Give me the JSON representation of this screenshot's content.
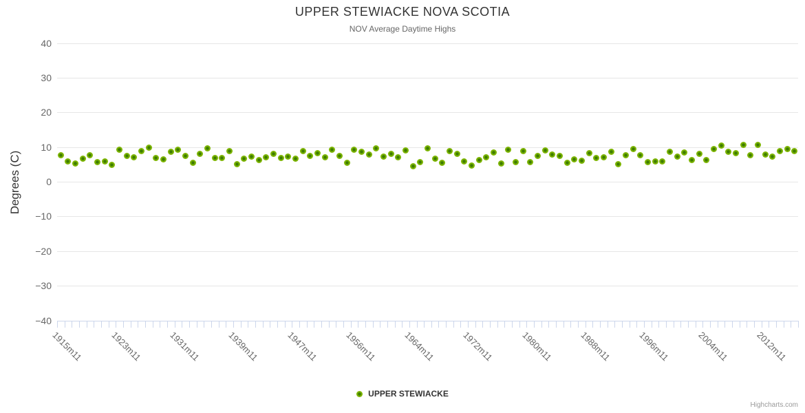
{
  "chart_data": {
    "type": "scatter",
    "title": "UPPER STEWIACKE NOVA SCOTIA",
    "subtitle": "NOV Average Daytime Highs",
    "ylabel": "Degrees (C)",
    "ylim": [
      -40,
      40
    ],
    "ytick_step": 10,
    "ytick_labels": [
      "40",
      "30",
      "20",
      "10",
      "0",
      "−10",
      "−20",
      "−30",
      "−40"
    ],
    "xtick_labels_shown": [
      "1915m11",
      "1923m11",
      "1931m11",
      "1939m11",
      "1947m11",
      "1956m11",
      "1964m11",
      "1972m11",
      "1980m11",
      "1988m11",
      "1996m11",
      "2004m11",
      "2012m11"
    ],
    "xtick_label_every": 8,
    "grid": true,
    "legend_position": "bottom-center",
    "credits": "Highcharts.com",
    "series": [
      {
        "name": "UPPER STEWIACKE",
        "marker_color": "#7CB400",
        "marker_center_color": "#3E7D00"
      }
    ],
    "categories": [
      "1915m11",
      "1916m11",
      "1917m11",
      "1918m11",
      "1919m11",
      "1920m11",
      "1921m11",
      "1922m11",
      "1923m11",
      "1924m11",
      "1925m11",
      "1926m11",
      "1927m11",
      "1928m11",
      "1929m11",
      "1930m11",
      "1931m11",
      "1932m11",
      "1933m11",
      "1934m11",
      "1935m11",
      "1936m11",
      "1937m11",
      "1938m11",
      "1939m11",
      "1940m11",
      "1941m11",
      "1942m11",
      "1943m11",
      "1944m11",
      "1945m11",
      "1946m11",
      "1947m11",
      "1948m11",
      "1949m11",
      "1951m11",
      "1952m11",
      "1953m11",
      "1954m11",
      "1955m11",
      "1956m11",
      "1957m11",
      "1958m11",
      "1959m11",
      "1960m11",
      "1961m11",
      "1962m11",
      "1963m11",
      "1964m11",
      "1965m11",
      "1966m11",
      "1967m11",
      "1968m11",
      "1969m11",
      "1970m11",
      "1971m11",
      "1972m11",
      "1973m11",
      "1974m11",
      "1975m11",
      "1976m11",
      "1977m11",
      "1978m11",
      "1979m11",
      "1980m11",
      "1981m11",
      "1982m11",
      "1983m11",
      "1984m11",
      "1985m11",
      "1986m11",
      "1987m11",
      "1988m11",
      "1989m11",
      "1990m11",
      "1991m11",
      "1992m11",
      "1993m11",
      "1994m11",
      "1995m11",
      "1996m11",
      "1997m11",
      "1998m11",
      "1999m11",
      "2000m11",
      "2001m11",
      "2002m11",
      "2003m11",
      "2004m11",
      "2005m11",
      "2006m11",
      "2007m11",
      "2008m11",
      "2009m11",
      "2010m11",
      "2011m11",
      "2012m11",
      "2013m11",
      "2014m11",
      "2015m11",
      "2016m11"
    ],
    "values": [
      7.7,
      5.9,
      5.3,
      6.6,
      7.6,
      5.7,
      5.9,
      4.9,
      9.2,
      7.5,
      7.1,
      8.9,
      9.9,
      6.9,
      6.5,
      8.7,
      9.2,
      7.4,
      5.5,
      8.1,
      9.7,
      6.9,
      6.9,
      8.9,
      5.1,
      6.7,
      7.3,
      6.3,
      7.1,
      8.0,
      6.9,
      7.2,
      6.6,
      8.8,
      7.4,
      8.3,
      7.1,
      9.2,
      7.4,
      5.4,
      9.2,
      8.7,
      7.8,
      9.6,
      7.2,
      8.1,
      7.0,
      9.0,
      4.5,
      5.7,
      9.7,
      6.7,
      5.5,
      8.9,
      8.0,
      5.9,
      4.7,
      6.2,
      7.1,
      8.5,
      5.3,
      9.2,
      5.6,
      8.9,
      5.7,
      7.5,
      9.0,
      7.9,
      7.5,
      5.5,
      6.4,
      6.1,
      8.3,
      6.9,
      7.1,
      8.6,
      5.0,
      7.7,
      9.5,
      7.7,
      5.7,
      5.9,
      5.9,
      8.6,
      7.3,
      8.5,
      6.3,
      8.1,
      6.3,
      9.4,
      10.5,
      8.6,
      8.3,
      10.6,
      7.6,
      10.6,
      7.8,
      7.3,
      8.9,
      9.4,
      8.9
    ],
    "colors": {
      "grid": "#e6e6e6",
      "axis": "#ccd6eb",
      "axis_labels": "#666666",
      "title": "#333333",
      "subtitle": "#666666",
      "credits": "#999999"
    }
  }
}
